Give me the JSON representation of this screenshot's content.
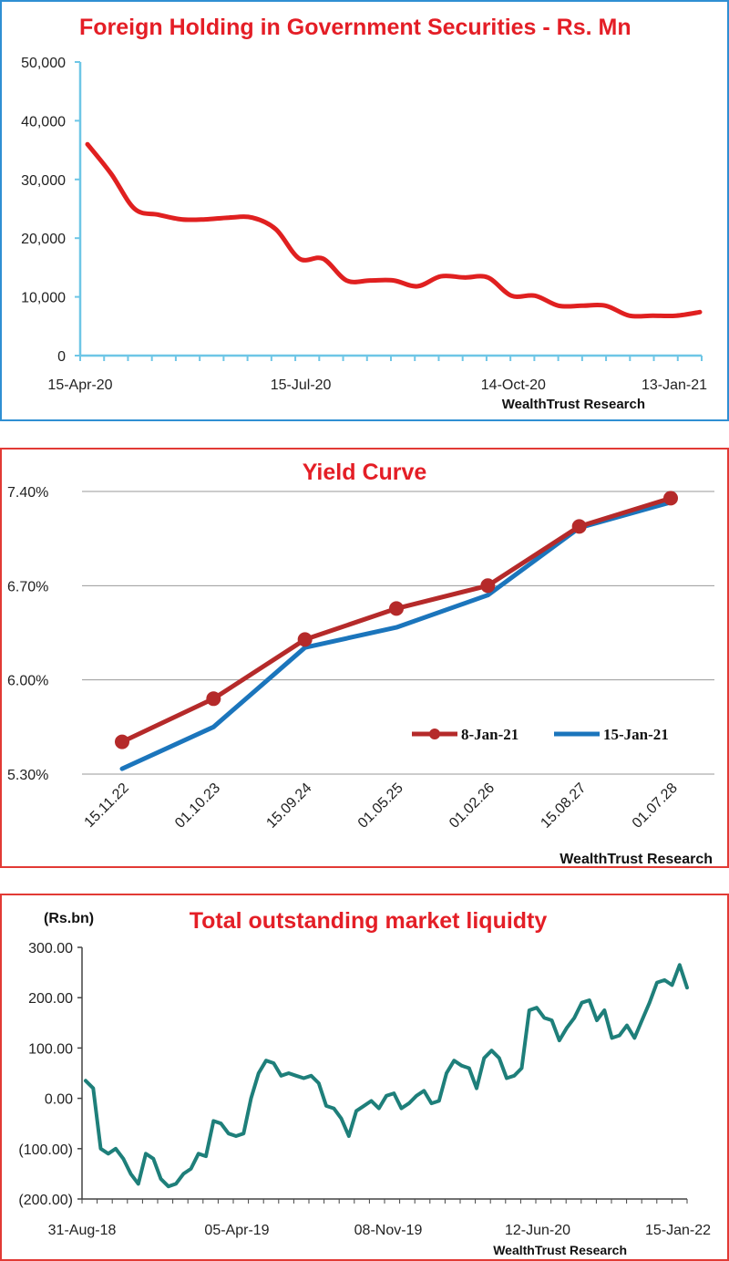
{
  "chart_data": [
    {
      "type": "line",
      "title": "Foreign Holding in Government Securities - Rs. Mn",
      "xlabel": "",
      "ylabel": "",
      "ylim": [
        0,
        50000
      ],
      "yticks": [
        "50,000",
        "40,000",
        "30,000",
        "20,000",
        "10,000",
        "0"
      ],
      "xticks": [
        "15-Apr-20",
        "15-Jul-20",
        "14-Oct-20",
        "13-Jan-21"
      ],
      "source": "WealthTrust Research",
      "grid": false,
      "colors": {
        "line": "#e02020",
        "axis": "#6ec6e6"
      },
      "series": [
        {
          "values": [
            36000,
            31000,
            25000,
            24000,
            23200,
            23200,
            23500,
            23500,
            21500,
            16500,
            16500,
            12800,
            12800,
            12800,
            11800,
            13500,
            13300,
            13300,
            10200,
            10200,
            8500,
            8500,
            8500,
            6800,
            6800,
            6800,
            7400
          ]
        }
      ]
    },
    {
      "type": "line",
      "title": "Yield Curve",
      "xlabel": "",
      "ylabel": "",
      "ylim": [
        5.3,
        7.4
      ],
      "yticks": [
        "7.40%",
        "6.70%",
        "6.00%",
        "5.30%"
      ],
      "categories": [
        "15.11.22",
        "01.10.23",
        "15.09.24",
        "01.05.25",
        "01.02.26",
        "15.08.27",
        "01.07.28"
      ],
      "source": "WealthTrust Research",
      "grid": true,
      "legend_position": "inside-bottom-right",
      "series": [
        {
          "name": "8-Jan-21",
          "color": "#b52a2a",
          "values": [
            5.54,
            5.86,
            6.3,
            6.53,
            6.7,
            7.14,
            7.35
          ]
        },
        {
          "name": "15-Jan-21",
          "color": "#1b75bc",
          "values": [
            5.34,
            5.65,
            6.24,
            6.39,
            6.63,
            7.13,
            7.32
          ]
        }
      ]
    },
    {
      "type": "line",
      "title": "Total outstanding market liquidty",
      "unit_label": "(Rs.bn)",
      "xlabel": "",
      "ylabel": "",
      "ylim": [
        -200,
        300
      ],
      "yticks": [
        "300.00",
        "200.00",
        "100.00",
        "0.00",
        "(100.00)",
        "(200.00)"
      ],
      "xticks": [
        "31-Aug-18",
        "05-Apr-19",
        "08-Nov-19",
        "12-Jun-20",
        "15-Jan-22"
      ],
      "source": "WealthTrust Research",
      "grid": false,
      "colors": {
        "line": "#1e7f7a",
        "axis": "#444444"
      },
      "series": [
        {
          "values": [
            35,
            20,
            -100,
            -110,
            -100,
            -120,
            -150,
            -170,
            -110,
            -120,
            -160,
            -175,
            -170,
            -150,
            -140,
            -110,
            -115,
            -45,
            -50,
            -70,
            -75,
            -70,
            0,
            50,
            75,
            70,
            45,
            50,
            45,
            40,
            45,
            30,
            -15,
            -20,
            -40,
            -75,
            -25,
            -15,
            -5,
            -20,
            5,
            10,
            -20,
            -10,
            5,
            15,
            -10,
            -5,
            50,
            75,
            65,
            60,
            20,
            80,
            95,
            80,
            40,
            45,
            60,
            175,
            180,
            160,
            155,
            115,
            140,
            160,
            190,
            195,
            155,
            175,
            120,
            125,
            145,
            120,
            155,
            190,
            230,
            235,
            225,
            265,
            220
          ]
        }
      ]
    }
  ]
}
